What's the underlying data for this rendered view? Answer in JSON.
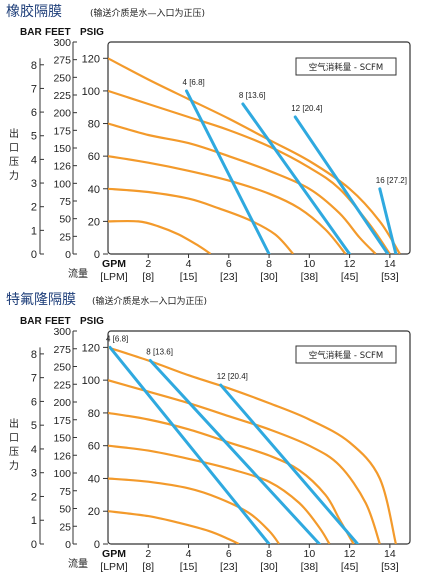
{
  "charts": [
    {
      "title": "橡胶隔膜",
      "subtitle": "(输送介质是水—入口为正压)",
      "legend": "空气消耗量 - SCFM",
      "unit_headers": [
        "BAR",
        "FEET",
        "PSIG"
      ],
      "y_label_vertical": "出口压力",
      "x_label": "流量",
      "x_unit_gpm": "GPM",
      "x_unit_lpm": "[LPM]"
    },
    {
      "title": "特氟隆隔膜",
      "subtitle": "(输送介质是水—入口为正压)",
      "legend": "空气消耗量 - SCFM",
      "unit_headers": [
        "BAR",
        "FEET",
        "PSIG"
      ],
      "y_label_vertical": "出口压力",
      "x_label": "流量",
      "x_unit_gpm": "GPM",
      "x_unit_lpm": "[LPM]"
    }
  ],
  "chart_data": [
    {
      "type": "line",
      "title": "橡胶隔膜",
      "xlabel": "流量",
      "ylabel": "出口压力",
      "xlim": [
        0,
        15
      ],
      "ylim": [
        0,
        130
      ],
      "x_ticks_gpm": [
        "2",
        "4",
        "6",
        "8",
        "10",
        "12",
        "14"
      ],
      "x_ticks_lpm": [
        "[8]",
        "[15]",
        "[23]",
        "[30]",
        "[38]",
        "[45]",
        "[53]"
      ],
      "y_ticks_psig": [
        "0",
        "20",
        "40",
        "60",
        "80",
        "100",
        "120"
      ],
      "y_ticks_feet": [
        "0",
        "25",
        "50",
        "75",
        "100",
        "126",
        "150",
        "175",
        "200",
        "225",
        "250",
        "275",
        "300"
      ],
      "y_ticks_bar": [
        "0",
        "1",
        "2",
        "3",
        "4",
        "5",
        "6",
        "7",
        "8"
      ],
      "legend_title": "空气消耗量 - SCFM",
      "performance_curves": [
        {
          "points": [
            [
              0,
              120
            ],
            [
              2,
              107
            ],
            [
              4,
              95
            ],
            [
              6,
              83
            ],
            [
              8,
              70
            ],
            [
              10,
              57
            ],
            [
              12,
              40
            ],
            [
              13.5,
              20
            ],
            [
              14.5,
              0
            ]
          ]
        },
        {
          "points": [
            [
              0,
              100
            ],
            [
              2,
              92
            ],
            [
              4,
              84
            ],
            [
              6,
              76
            ],
            [
              8,
              66
            ],
            [
              10,
              53
            ],
            [
              11.5,
              40
            ],
            [
              13,
              18
            ],
            [
              14,
              0
            ]
          ]
        },
        {
          "points": [
            [
              0,
              80
            ],
            [
              2,
              73
            ],
            [
              4,
              68
            ],
            [
              6,
              60
            ],
            [
              8,
              51
            ],
            [
              10,
              40
            ],
            [
              11.5,
              25
            ],
            [
              12.5,
              10
            ],
            [
              13.3,
              0
            ]
          ]
        },
        {
          "points": [
            [
              0,
              60
            ],
            [
              2,
              56
            ],
            [
              4,
              51
            ],
            [
              6,
              45
            ],
            [
              8,
              37
            ],
            [
              9.5,
              28
            ],
            [
              10.8,
              15
            ],
            [
              11.8,
              0
            ]
          ]
        },
        {
          "points": [
            [
              0,
              40
            ],
            [
              2,
              38
            ],
            [
              4,
              34
            ],
            [
              5.5,
              28
            ],
            [
              7,
              21
            ],
            [
              8.3,
              12
            ],
            [
              9.2,
              0
            ]
          ]
        },
        {
          "points": [
            [
              0,
              20
            ],
            [
              1.5,
              20
            ],
            [
              2.5,
              17
            ],
            [
              3.5,
              12
            ],
            [
              4.5,
              5
            ],
            [
              5.1,
              0
            ]
          ]
        }
      ],
      "air_consumption_lines": [
        {
          "label": "4 [6.8]",
          "points": [
            [
              3.9,
              100
            ],
            [
              8,
              0
            ]
          ]
        },
        {
          "label": "8 [13.6]",
          "points": [
            [
              6.7,
              92
            ],
            [
              12,
              0
            ]
          ]
        },
        {
          "label": "12 [20.4]",
          "points": [
            [
              9.3,
              84
            ],
            [
              13.9,
              0
            ]
          ]
        },
        {
          "label": "16 [27.2]",
          "points": [
            [
              13.5,
              40
            ],
            [
              14.3,
              0
            ]
          ]
        }
      ]
    },
    {
      "type": "line",
      "title": "特氟隆隔膜",
      "xlabel": "流量",
      "ylabel": "出口压力",
      "xlim": [
        0,
        15
      ],
      "ylim": [
        0,
        130
      ],
      "x_ticks_gpm": [
        "2",
        "4",
        "6",
        "8",
        "10",
        "12",
        "14"
      ],
      "x_ticks_lpm": [
        "[8]",
        "[15]",
        "[23]",
        "[30]",
        "[38]",
        "[45]",
        "[53]"
      ],
      "y_ticks_psig": [
        "0",
        "20",
        "40",
        "60",
        "80",
        "100",
        "120"
      ],
      "y_ticks_feet": [
        "0",
        "25",
        "50",
        "75",
        "100",
        "126",
        "150",
        "175",
        "200",
        "225",
        "250",
        "275",
        "300"
      ],
      "y_ticks_bar": [
        "0",
        "1",
        "2",
        "3",
        "4",
        "5",
        "6",
        "7",
        "8"
      ],
      "legend_title": "空气消耗量 - SCFM",
      "performance_curves": [
        {
          "points": [
            [
              0,
              120
            ],
            [
              2,
              112
            ],
            [
              4,
              103
            ],
            [
              6,
              95
            ],
            [
              8,
              86
            ],
            [
              10,
              76
            ],
            [
              12,
              62
            ],
            [
              13.5,
              40
            ],
            [
              14.3,
              0
            ]
          ]
        },
        {
          "points": [
            [
              0,
              100
            ],
            [
              2,
              93
            ],
            [
              4,
              86
            ],
            [
              6,
              78
            ],
            [
              8,
              70
            ],
            [
              10,
              60
            ],
            [
              11.5,
              48
            ],
            [
              12.8,
              25
            ],
            [
              13.5,
              0
            ]
          ]
        },
        {
          "points": [
            [
              0,
              80
            ],
            [
              2,
              76
            ],
            [
              4,
              70
            ],
            [
              6,
              62
            ],
            [
              8,
              54
            ],
            [
              9.5,
              45
            ],
            [
              10.8,
              30
            ],
            [
              11.5,
              15
            ],
            [
              12.2,
              0
            ]
          ]
        },
        {
          "points": [
            [
              0,
              60
            ],
            [
              2,
              57
            ],
            [
              4,
              52
            ],
            [
              6,
              46
            ],
            [
              8,
              38
            ],
            [
              9.5,
              25
            ],
            [
              10.5,
              10
            ],
            [
              11,
              0
            ]
          ]
        },
        {
          "points": [
            [
              0,
              40
            ],
            [
              2,
              38
            ],
            [
              4,
              34
            ],
            [
              5.5,
              28
            ],
            [
              7,
              19
            ],
            [
              8,
              8
            ],
            [
              8.5,
              0
            ]
          ]
        },
        {
          "points": [
            [
              0,
              20
            ],
            [
              2,
              17
            ],
            [
              3.5,
              13
            ],
            [
              5,
              8
            ],
            [
              6,
              3
            ],
            [
              6.5,
              0
            ]
          ]
        }
      ],
      "air_consumption_lines": [
        {
          "label": "4 [6.8]",
          "points": [
            [
              0.1,
              120
            ],
            [
              8,
              0
            ]
          ]
        },
        {
          "label": "8 [13.6]",
          "points": [
            [
              2.1,
              112
            ],
            [
              10.5,
              0
            ]
          ]
        },
        {
          "label": "12 [20.4]",
          "points": [
            [
              5.6,
              97
            ],
            [
              12.4,
              0
            ]
          ]
        }
      ]
    }
  ]
}
